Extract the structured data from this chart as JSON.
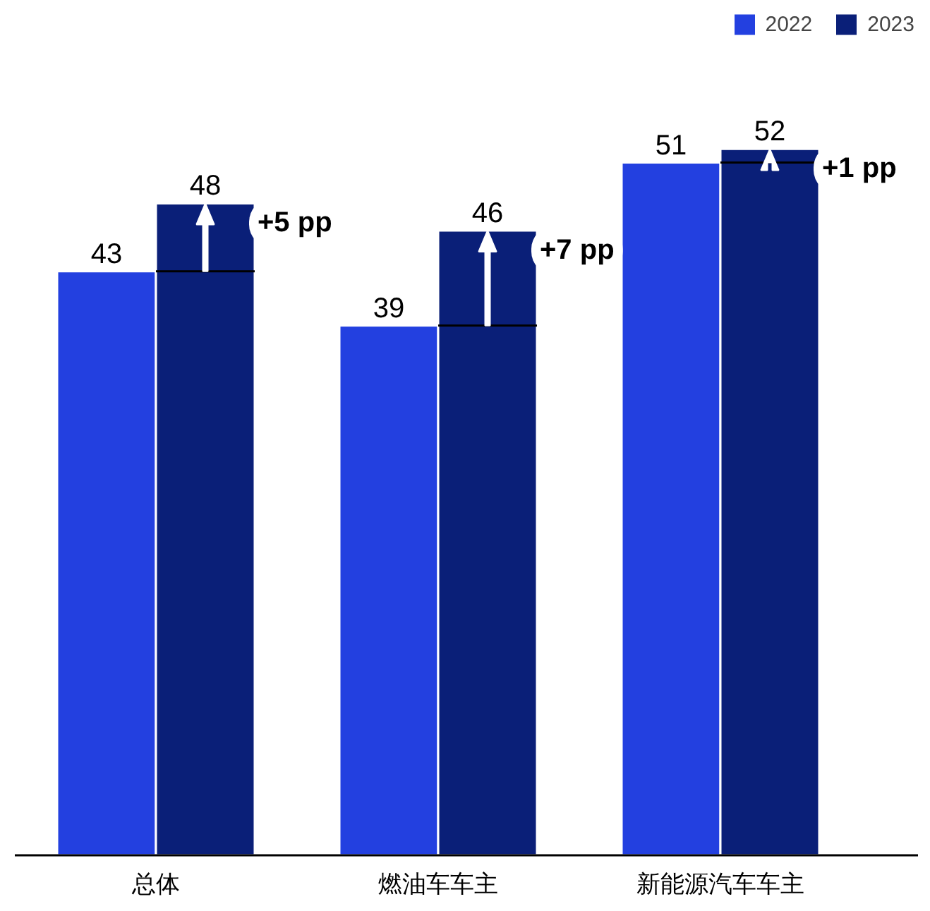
{
  "chart_data": {
    "type": "bar",
    "categories": [
      "总体",
      "燃油车车主",
      "新能源汽车车主"
    ],
    "series": [
      {
        "name": "2022",
        "color": "#2340e0",
        "values": [
          43,
          39,
          51
        ]
      },
      {
        "name": "2023",
        "color": "#0a1f78",
        "values": [
          48,
          46,
          52
        ]
      }
    ],
    "data_labels": true,
    "legend": "top right",
    "grid": false,
    "annotations": [
      "+5 pp",
      "+7 pp",
      "+1 pp"
    ]
  }
}
